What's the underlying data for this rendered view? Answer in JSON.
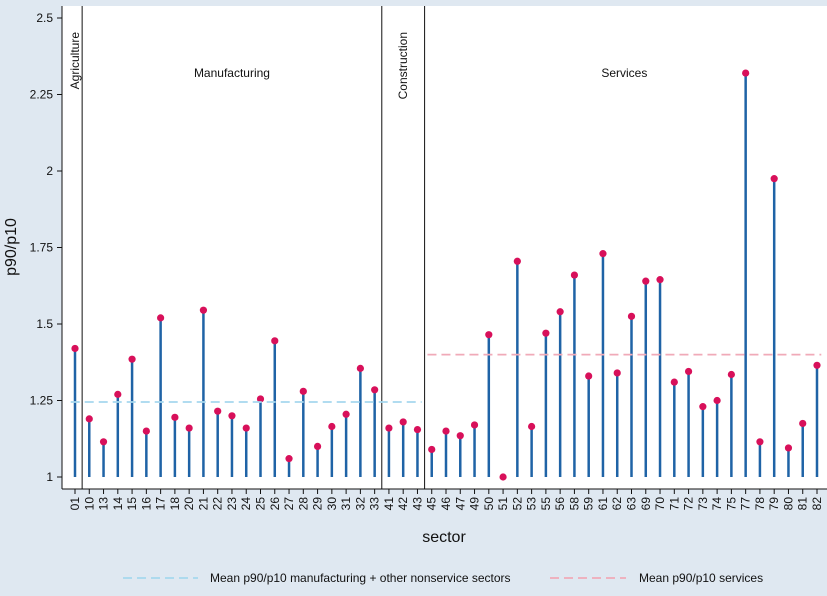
{
  "chart_data": {
    "type": "lollipop",
    "title": "",
    "xlabel": "sector",
    "ylabel": "p90/p10",
    "ylim": [
      1,
      2.5
    ],
    "yticks": [
      1,
      1.25,
      1.5,
      1.75,
      2,
      2.25,
      2.5
    ],
    "yticklabels": [
      "1",
      "1.25",
      "1.5",
      "1.75",
      "2",
      "2.25",
      "2.5"
    ],
    "grid": false,
    "baseline": 1,
    "categories": [
      "01",
      "10",
      "13",
      "14",
      "15",
      "16",
      "17",
      "18",
      "20",
      "21",
      "22",
      "23",
      "24",
      "25",
      "26",
      "27",
      "28",
      "29",
      "30",
      "31",
      "32",
      "33",
      "41",
      "42",
      "43",
      "45",
      "46",
      "47",
      "49",
      "50",
      "51",
      "52",
      "53",
      "55",
      "56",
      "58",
      "59",
      "61",
      "62",
      "63",
      "69",
      "70",
      "71",
      "72",
      "73",
      "74",
      "75",
      "77",
      "78",
      "79",
      "80",
      "81",
      "82"
    ],
    "values": [
      1.42,
      1.19,
      1.115,
      1.27,
      1.385,
      1.15,
      1.52,
      1.195,
      1.16,
      1.545,
      1.215,
      1.2,
      1.16,
      1.255,
      1.445,
      1.06,
      1.28,
      1.1,
      1.165,
      1.205,
      1.355,
      1.285,
      1.16,
      1.18,
      1.155,
      1.09,
      1.15,
      1.135,
      1.17,
      1.465,
      1.0,
      1.705,
      1.165,
      1.47,
      1.54,
      1.66,
      1.33,
      1.73,
      1.34,
      1.525,
      1.64,
      1.645,
      1.31,
      1.345,
      1.23,
      1.25,
      1.335,
      2.32,
      1.115,
      1.975,
      1.095,
      1.175,
      1.365
    ],
    "sector_groups": [
      {
        "label": "Agriculture",
        "start": "01",
        "end": "01",
        "orientation": "vertical"
      },
      {
        "label": "Manufacturing",
        "start": "10",
        "end": "33",
        "orientation": "horizontal"
      },
      {
        "label": "Construction",
        "start": "41",
        "end": "43",
        "orientation": "vertical"
      },
      {
        "label": "Services",
        "start": "45",
        "end": "82",
        "orientation": "horizontal"
      }
    ],
    "reference_lines": [
      {
        "name": "Mean p90/p10 manufacturing + other nonservice sectors",
        "value": 1.245,
        "from": "01",
        "to": "43",
        "color": "#a6d8ee"
      },
      {
        "name": "Mean p90/p10 services",
        "value": 1.4,
        "from": "45",
        "to": "82",
        "color": "#f0aab8"
      }
    ],
    "legend_position": "bottom",
    "colors": {
      "stem": "#1f63a6",
      "marker": "#d8105a",
      "axis": "#111111",
      "divider": "#111111"
    }
  }
}
